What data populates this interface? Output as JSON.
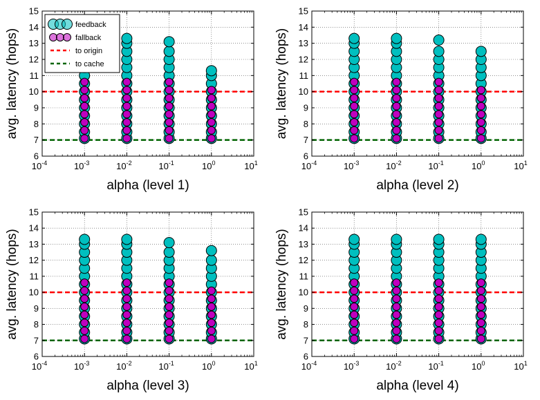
{
  "chart_data": [
    {
      "type": "scatter",
      "xlabel": "alpha (level 1)",
      "ylabel": "avg. latency (hops)",
      "xscale": "log",
      "xlim": [
        0.0001,
        10
      ],
      "ylim": [
        6,
        15
      ],
      "yticks": [
        6,
        7,
        8,
        9,
        10,
        11,
        12,
        13,
        14,
        15
      ],
      "xtick_bases": [
        "10",
        "10",
        "10",
        "10",
        "10",
        "10"
      ],
      "xtick_exps": [
        "-4",
        "-3",
        "-2",
        "-1",
        "0",
        "1"
      ],
      "grid": true,
      "legend": {
        "placement": "top-left"
      },
      "reference_lines": [
        {
          "name": "to origin",
          "y": 10.0,
          "color": "#ff0000",
          "style": "dashed"
        },
        {
          "name": "to cache",
          "y": 7.0,
          "color": "#006400",
          "style": "dashed"
        }
      ],
      "series": [
        {
          "name": "feedback",
          "color": "#00bfbf",
          "x": [
            0.001,
            0.01,
            0.1,
            1
          ],
          "y": [
            [
              7.1,
              7.5,
              8.0,
              8.5,
              9.0,
              9.5,
              10.0,
              10.5,
              11.0,
              11.5,
              12.0,
              12.5
            ],
            [
              7.1,
              7.5,
              8.0,
              8.5,
              9.0,
              9.5,
              10.0,
              10.5,
              11.0,
              11.5,
              12.0,
              12.5,
              13.0,
              13.3
            ],
            [
              7.1,
              7.5,
              8.0,
              8.5,
              9.0,
              9.5,
              10.0,
              10.5,
              11.0,
              11.5,
              12.0,
              12.5,
              13.1
            ],
            [
              7.1,
              7.5,
              8.0,
              8.5,
              9.0,
              9.5,
              10.0,
              10.5,
              11.0,
              11.3
            ]
          ]
        },
        {
          "name": "fallback",
          "color": "#bf00bf",
          "x": [
            0.001,
            0.01,
            0.1,
            1
          ],
          "y": [
            [
              7.1,
              7.6,
              8.1,
              8.6,
              9.1,
              9.6,
              10.1,
              10.6
            ],
            [
              7.1,
              7.6,
              8.1,
              8.6,
              9.1,
              9.6,
              10.1,
              10.6
            ],
            [
              7.1,
              7.6,
              8.1,
              8.6,
              9.1,
              9.6,
              10.1,
              10.6
            ],
            [
              7.1,
              7.6,
              8.1,
              8.6,
              9.1,
              9.6,
              10.1
            ]
          ]
        }
      ]
    },
    {
      "type": "scatter",
      "xlabel": "alpha (level 2)",
      "ylabel": "avg. latency (hops)",
      "xscale": "log",
      "xlim": [
        0.0001,
        10
      ],
      "ylim": [
        6,
        15
      ],
      "yticks": [
        6,
        7,
        8,
        9,
        10,
        11,
        12,
        13,
        14,
        15
      ],
      "xtick_bases": [
        "10",
        "10",
        "10",
        "10",
        "10",
        "10"
      ],
      "xtick_exps": [
        "-4",
        "-3",
        "-2",
        "-1",
        "0",
        "1"
      ],
      "grid": true,
      "reference_lines": [
        {
          "name": "to origin",
          "y": 10.0,
          "color": "#ff0000",
          "style": "dashed"
        },
        {
          "name": "to cache",
          "y": 7.0,
          "color": "#006400",
          "style": "dashed"
        }
      ],
      "series": [
        {
          "name": "feedback",
          "color": "#00bfbf",
          "x": [
            0.001,
            0.01,
            0.1,
            1
          ],
          "y": [
            [
              7.1,
              7.5,
              8.0,
              8.5,
              9.0,
              9.5,
              10.0,
              10.5,
              11.0,
              11.5,
              12.0,
              12.5,
              13.0,
              13.3
            ],
            [
              7.1,
              7.5,
              8.0,
              8.5,
              9.0,
              9.5,
              10.0,
              10.5,
              11.0,
              11.5,
              12.0,
              12.5,
              13.0,
              13.3
            ],
            [
              7.1,
              7.5,
              8.0,
              8.5,
              9.0,
              9.5,
              10.0,
              10.5,
              11.0,
              11.5,
              12.0,
              12.5,
              13.2
            ],
            [
              7.1,
              7.5,
              8.0,
              8.5,
              9.0,
              9.5,
              10.0,
              10.5,
              11.0,
              11.5,
              12.0,
              12.5
            ]
          ]
        },
        {
          "name": "fallback",
          "color": "#bf00bf",
          "x": [
            0.001,
            0.01,
            0.1,
            1
          ],
          "y": [
            [
              7.1,
              7.6,
              8.1,
              8.6,
              9.1,
              9.6,
              10.1,
              10.6
            ],
            [
              7.1,
              7.6,
              8.1,
              8.6,
              9.1,
              9.6,
              10.1,
              10.6
            ],
            [
              7.1,
              7.6,
              8.1,
              8.6,
              9.1,
              9.6,
              10.1,
              10.6
            ],
            [
              7.1,
              7.6,
              8.1,
              8.6,
              9.1,
              9.6,
              10.1
            ]
          ]
        }
      ]
    },
    {
      "type": "scatter",
      "xlabel": "alpha (level 3)",
      "ylabel": "avg. latency (hops)",
      "xscale": "log",
      "xlim": [
        0.0001,
        10
      ],
      "ylim": [
        6,
        15
      ],
      "yticks": [
        6,
        7,
        8,
        9,
        10,
        11,
        12,
        13,
        14,
        15
      ],
      "xtick_bases": [
        "10",
        "10",
        "10",
        "10",
        "10",
        "10"
      ],
      "xtick_exps": [
        "-4",
        "-3",
        "-2",
        "-1",
        "0",
        "1"
      ],
      "grid": true,
      "reference_lines": [
        {
          "name": "to origin",
          "y": 10.0,
          "color": "#ff0000",
          "style": "dashed"
        },
        {
          "name": "to cache",
          "y": 7.0,
          "color": "#006400",
          "style": "dashed"
        }
      ],
      "series": [
        {
          "name": "feedback",
          "color": "#00bfbf",
          "x": [
            0.001,
            0.01,
            0.1,
            1
          ],
          "y": [
            [
              7.1,
              7.5,
              8.0,
              8.5,
              9.0,
              9.5,
              10.0,
              10.5,
              11.0,
              11.5,
              12.0,
              12.5,
              13.0,
              13.3
            ],
            [
              7.1,
              7.5,
              8.0,
              8.5,
              9.0,
              9.5,
              10.0,
              10.5,
              11.0,
              11.5,
              12.0,
              12.5,
              13.0,
              13.3
            ],
            [
              7.1,
              7.5,
              8.0,
              8.5,
              9.0,
              9.5,
              10.0,
              10.5,
              11.0,
              11.5,
              12.0,
              12.5,
              13.1
            ],
            [
              7.1,
              7.5,
              8.0,
              8.5,
              9.0,
              9.5,
              10.0,
              10.5,
              11.0,
              11.5,
              12.0,
              12.6
            ]
          ]
        },
        {
          "name": "fallback",
          "color": "#bf00bf",
          "x": [
            0.001,
            0.01,
            0.1,
            1
          ],
          "y": [
            [
              7.1,
              7.6,
              8.1,
              8.6,
              9.1,
              9.6,
              10.1,
              10.6
            ],
            [
              7.1,
              7.6,
              8.1,
              8.6,
              9.1,
              9.6,
              10.1,
              10.6
            ],
            [
              7.1,
              7.6,
              8.1,
              8.6,
              9.1,
              9.6,
              10.1,
              10.6
            ],
            [
              7.1,
              7.6,
              8.1,
              8.6,
              9.1,
              9.6,
              10.1
            ]
          ]
        }
      ]
    },
    {
      "type": "scatter",
      "xlabel": "alpha (level 4)",
      "ylabel": "avg. latency (hops)",
      "xscale": "log",
      "xlim": [
        0.0001,
        10
      ],
      "ylim": [
        6,
        15
      ],
      "yticks": [
        6,
        7,
        8,
        9,
        10,
        11,
        12,
        13,
        14,
        15
      ],
      "xtick_bases": [
        "10",
        "10",
        "10",
        "10",
        "10",
        "10"
      ],
      "xtick_exps": [
        "-4",
        "-3",
        "-2",
        "-1",
        "0",
        "1"
      ],
      "grid": true,
      "reference_lines": [
        {
          "name": "to origin",
          "y": 10.0,
          "color": "#ff0000",
          "style": "dashed"
        },
        {
          "name": "to cache",
          "y": 7.0,
          "color": "#006400",
          "style": "dashed"
        }
      ],
      "series": [
        {
          "name": "feedback",
          "color": "#00bfbf",
          "x": [
            0.001,
            0.01,
            0.1,
            1
          ],
          "y": [
            [
              7.1,
              7.5,
              8.0,
              8.5,
              9.0,
              9.5,
              10.0,
              10.5,
              11.0,
              11.5,
              12.0,
              12.5,
              13.0,
              13.3
            ],
            [
              7.1,
              7.5,
              8.0,
              8.5,
              9.0,
              9.5,
              10.0,
              10.5,
              11.0,
              11.5,
              12.0,
              12.5,
              13.0,
              13.3
            ],
            [
              7.1,
              7.5,
              8.0,
              8.5,
              9.0,
              9.5,
              10.0,
              10.5,
              11.0,
              11.5,
              12.0,
              12.5,
              13.0,
              13.3
            ],
            [
              7.1,
              7.5,
              8.0,
              8.5,
              9.0,
              9.5,
              10.0,
              10.5,
              11.0,
              11.5,
              12.0,
              12.5,
              13.0,
              13.3
            ]
          ]
        },
        {
          "name": "fallback",
          "color": "#bf00bf",
          "x": [
            0.001,
            0.01,
            0.1,
            1
          ],
          "y": [
            [
              7.1,
              7.6,
              8.1,
              8.6,
              9.1,
              9.6,
              10.1,
              10.6
            ],
            [
              7.1,
              7.6,
              8.1,
              8.6,
              9.1,
              9.6,
              10.1,
              10.6
            ],
            [
              7.1,
              7.6,
              8.1,
              8.6,
              9.1,
              9.6,
              10.1,
              10.6
            ],
            [
              7.1,
              7.6,
              8.1,
              8.6,
              9.1,
              9.6,
              10.1,
              10.6
            ]
          ]
        }
      ]
    }
  ]
}
